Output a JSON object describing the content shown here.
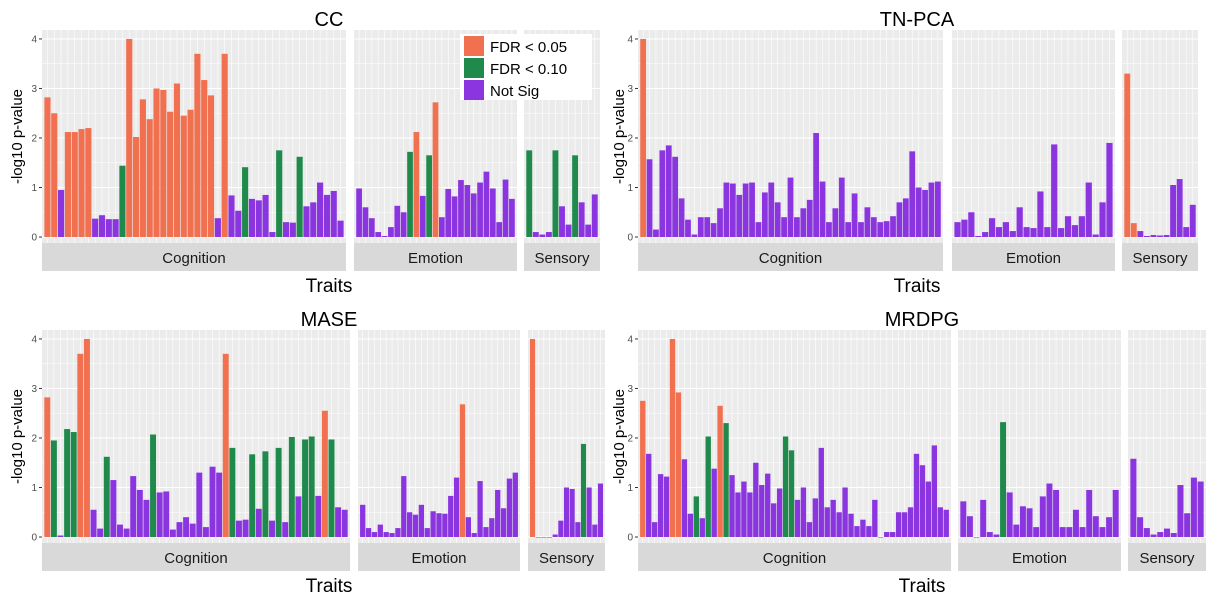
{
  "figure": {
    "legend": {
      "entries": [
        {
          "label": "FDR < 0.05",
          "color": "#F07050"
        },
        {
          "label": "FDR < 0.10",
          "color": "#1F8A4C"
        },
        {
          "label": "Not Sig",
          "color": "#8A35DF"
        }
      ]
    },
    "colors": {
      "FDR < 0.05": "#F07050",
      "FDR < 0.10": "#1F8A4C",
      "Not Sig": "#8A35DF",
      "panel_bg": "#EBEBEB",
      "strip_bg": "#D9D9D9",
      "grid": "#FFFFFF"
    }
  },
  "chart_data": [
    {
      "type": "bar",
      "title": "CC",
      "xlabel": "Traits",
      "ylabel": "-log10 p-value",
      "ylim": [
        0,
        4.1
      ],
      "yticks": [
        0,
        1,
        2,
        3,
        4
      ],
      "facets": [
        {
          "name": "Cognition",
          "values": [
            2.82,
            2.5,
            0.95,
            2.12,
            2.12,
            2.18,
            2.2,
            0.37,
            0.44,
            0.36,
            0.36,
            1.44,
            4.0,
            2.02,
            2.78,
            2.38,
            3.0,
            2.97,
            2.53,
            3.1,
            2.45,
            2.57,
            3.7,
            3.17,
            2.86,
            0.38,
            3.7,
            0.84,
            0.53,
            1.41,
            0.77,
            0.74,
            0.85,
            0.1,
            1.75,
            0.3,
            0.29,
            1.62,
            0.62,
            0.7,
            1.1,
            0.85,
            0.93,
            0.33
          ],
          "sig": [
            "r",
            "r",
            "p",
            "r",
            "r",
            "r",
            "r",
            "p",
            "p",
            "p",
            "p",
            "g",
            "r",
            "r",
            "r",
            "r",
            "r",
            "r",
            "r",
            "r",
            "r",
            "r",
            "r",
            "r",
            "r",
            "p",
            "r",
            "p",
            "p",
            "g",
            "p",
            "p",
            "p",
            "p",
            "g",
            "p",
            "p",
            "g",
            "p",
            "p",
            "p",
            "p",
            "p",
            "p"
          ]
        },
        {
          "name": "Emotion",
          "values": [
            0.98,
            0.6,
            0.38,
            0.1,
            0.02,
            0.2,
            0.63,
            0.5,
            1.72,
            2.12,
            0.83,
            1.65,
            2.72,
            0.4,
            0.97,
            0.82,
            1.15,
            1.05,
            0.88,
            1.1,
            1.32,
            0.98,
            0.3,
            1.16,
            0.77
          ],
          "sig": [
            "p",
            "p",
            "p",
            "p",
            "p",
            "p",
            "p",
            "p",
            "g",
            "r",
            "p",
            "g",
            "r",
            "p",
            "p",
            "p",
            "p",
            "p",
            "p",
            "p",
            "p",
            "p",
            "p",
            "p",
            "p"
          ]
        },
        {
          "name": "Sensory",
          "values": [
            1.75,
            0.1,
            0.05,
            0.1,
            1.75,
            0.62,
            0.25,
            1.65,
            0.7,
            0.25,
            0.86
          ],
          "sig": [
            "g",
            "p",
            "p",
            "p",
            "g",
            "p",
            "p",
            "g",
            "p",
            "p",
            "p"
          ]
        }
      ]
    },
    {
      "type": "bar",
      "title": "TN-PCA",
      "xlabel": "Traits",
      "ylabel": "-log10 p-value",
      "ylim": [
        0,
        4.1
      ],
      "yticks": [
        0,
        1,
        2,
        3,
        4
      ],
      "facets": [
        {
          "name": "Cognition",
          "values": [
            4.0,
            1.57,
            0.15,
            1.75,
            1.85,
            1.62,
            0.78,
            0.35,
            0.05,
            0.4,
            0.4,
            0.28,
            0.58,
            1.1,
            1.08,
            0.85,
            1.08,
            1.1,
            0.3,
            0.9,
            1.1,
            0.7,
            0.4,
            1.2,
            0.4,
            0.58,
            0.75,
            2.1,
            1.12,
            0.3,
            0.58,
            1.2,
            0.3,
            0.88,
            0.3,
            0.6,
            0.4,
            0.3,
            0.32,
            0.42,
            0.7,
            0.78,
            1.73,
            1.0,
            0.95,
            1.1,
            1.12
          ],
          "sig": [
            "r",
            "p",
            "p",
            "p",
            "p",
            "p",
            "p",
            "p",
            "p",
            "p",
            "p",
            "p",
            "p",
            "p",
            "p",
            "p",
            "p",
            "p",
            "p",
            "p",
            "p",
            "p",
            "p",
            "p",
            "p",
            "p",
            "p",
            "p",
            "p",
            "p",
            "p",
            "p",
            "p",
            "p",
            "p",
            "p",
            "p",
            "p",
            "p",
            "p",
            "p",
            "p",
            "p",
            "p",
            "p",
            "p",
            "p"
          ]
        },
        {
          "name": "Emotion",
          "values": [
            0.3,
            0.35,
            0.5,
            0.02,
            0.1,
            0.38,
            0.2,
            0.3,
            0.12,
            0.6,
            0.2,
            0.18,
            0.92,
            0.2,
            1.87,
            0.18,
            0.42,
            0.24,
            0.42,
            1.1,
            0.05,
            0.7,
            1.9
          ],
          "sig": [
            "p",
            "p",
            "p",
            "p",
            "p",
            "p",
            "p",
            "p",
            "p",
            "p",
            "p",
            "p",
            "p",
            "p",
            "p",
            "p",
            "p",
            "p",
            "p",
            "p",
            "p",
            "p",
            "p"
          ]
        },
        {
          "name": "Sensory",
          "values": [
            3.3,
            0.28,
            0.12,
            0.02,
            0.04,
            0.03,
            0.04,
            1.05,
            1.17,
            0.2,
            0.65
          ],
          "sig": [
            "r",
            "r",
            "p",
            "p",
            "p",
            "p",
            "p",
            "p",
            "p",
            "p",
            "p"
          ]
        }
      ]
    },
    {
      "type": "bar",
      "title": "MASE",
      "xlabel": "Traits",
      "ylabel": "-log10 p-value",
      "ylim": [
        0,
        4.1
      ],
      "yticks": [
        0,
        1,
        2,
        3,
        4
      ],
      "facets": [
        {
          "name": "Cognition",
          "values": [
            2.82,
            1.95,
            0.03,
            2.18,
            2.12,
            3.7,
            4.0,
            0.55,
            0.17,
            1.62,
            1.15,
            0.25,
            0.17,
            1.23,
            0.95,
            0.75,
            2.07,
            0.9,
            0.92,
            0.15,
            0.3,
            0.4,
            0.27,
            1.3,
            0.2,
            1.42,
            1.3,
            3.7,
            1.8,
            0.33,
            0.35,
            1.67,
            0.57,
            1.73,
            0.33,
            1.8,
            0.3,
            2.02,
            0.82,
            1.97,
            2.03,
            0.83,
            2.55,
            1.97,
            0.6,
            0.55
          ],
          "sig": [
            "r",
            "g",
            "p",
            "g",
            "g",
            "r",
            "r",
            "p",
            "p",
            "g",
            "p",
            "p",
            "p",
            "p",
            "p",
            "p",
            "g",
            "p",
            "p",
            "p",
            "p",
            "p",
            "p",
            "p",
            "p",
            "p",
            "p",
            "r",
            "g",
            "p",
            "p",
            "g",
            "p",
            "g",
            "p",
            "g",
            "p",
            "g",
            "p",
            "g",
            "g",
            "p",
            "r",
            "g",
            "p",
            "p"
          ]
        },
        {
          "name": "Emotion",
          "values": [
            0.65,
            0.18,
            0.1,
            0.25,
            0.1,
            0.08,
            0.18,
            1.23,
            0.5,
            0.45,
            0.65,
            0.18,
            0.52,
            0.48,
            0.47,
            0.83,
            1.2,
            2.68,
            0.4,
            0.08,
            1.13,
            0.2,
            0.38,
            0.95,
            0.58,
            1.18,
            1.3
          ],
          "sig": [
            "p",
            "p",
            "p",
            "p",
            "p",
            "p",
            "p",
            "p",
            "p",
            "p",
            "p",
            "p",
            "p",
            "p",
            "p",
            "p",
            "p",
            "r",
            "p",
            "p",
            "p",
            "p",
            "p",
            "p",
            "p",
            "p",
            "p"
          ]
        },
        {
          "name": "Sensory",
          "values": [
            4.0,
            0.0,
            0.0,
            0.0,
            0.05,
            0.33,
            1.0,
            0.97,
            0.3,
            1.88,
            1.0,
            0.25,
            1.08
          ],
          "sig": [
            "r",
            "p",
            "p",
            "p",
            "p",
            "p",
            "p",
            "p",
            "p",
            "g",
            "p",
            "p",
            "p"
          ]
        }
      ]
    },
    {
      "type": "bar",
      "title": "MRDPG",
      "xlabel": "Traits",
      "ylabel": "-log10 p-value",
      "ylim": [
        0,
        4.1
      ],
      "yticks": [
        0,
        1,
        2,
        3,
        4
      ],
      "facets": [
        {
          "name": "Cognition",
          "values": [
            2.75,
            1.68,
            0.3,
            1.27,
            1.22,
            4.0,
            2.92,
            1.57,
            0.47,
            0.82,
            0.38,
            2.03,
            1.38,
            2.65,
            2.3,
            1.25,
            0.9,
            1.12,
            0.9,
            1.5,
            1.05,
            1.28,
            0.68,
            0.98,
            2.03,
            1.75,
            0.75,
            1.0,
            0.3,
            0.78,
            1.8,
            0.6,
            0.75,
            0.5,
            1.0,
            0.47,
            0.22,
            0.35,
            0.22,
            0.75,
            0.0,
            0.1,
            0.1,
            0.5,
            0.5,
            0.6,
            1.68,
            1.45,
            1.12,
            1.85,
            0.6,
            0.55
          ],
          "sig": [
            "r",
            "p",
            "p",
            "p",
            "p",
            "r",
            "r",
            "p",
            "p",
            "g",
            "p",
            "g",
            "p",
            "r",
            "g",
            "p",
            "p",
            "p",
            "p",
            "p",
            "p",
            "p",
            "p",
            "p",
            "g",
            "g",
            "p",
            "p",
            "p",
            "p",
            "p",
            "p",
            "p",
            "p",
            "p",
            "p",
            "p",
            "p",
            "p",
            "p",
            "p",
            "p",
            "p",
            "p",
            "p",
            "p",
            "p",
            "p",
            "p",
            "p",
            "p",
            "p"
          ]
        },
        {
          "name": "Emotion",
          "values": [
            0.72,
            0.42,
            0.0,
            0.75,
            0.1,
            0.05,
            2.32,
            0.9,
            0.25,
            0.62,
            0.58,
            0.2,
            0.82,
            1.08,
            0.95,
            0.2,
            0.2,
            0.55,
            0.2,
            0.95,
            0.42,
            0.2,
            0.4,
            0.95
          ],
          "sig": [
            "p",
            "p",
            "p",
            "p",
            "p",
            "p",
            "g",
            "p",
            "p",
            "p",
            "p",
            "p",
            "p",
            "p",
            "p",
            "p",
            "p",
            "p",
            "p",
            "p",
            "p",
            "p",
            "p",
            "p"
          ]
        },
        {
          "name": "Sensory",
          "values": [
            1.58,
            0.4,
            0.18,
            0.05,
            0.1,
            0.17,
            0.08,
            1.05,
            0.48,
            1.2,
            1.12
          ],
          "sig": [
            "p",
            "p",
            "p",
            "p",
            "p",
            "p",
            "p",
            "p",
            "p",
            "p",
            "p"
          ]
        }
      ]
    }
  ]
}
